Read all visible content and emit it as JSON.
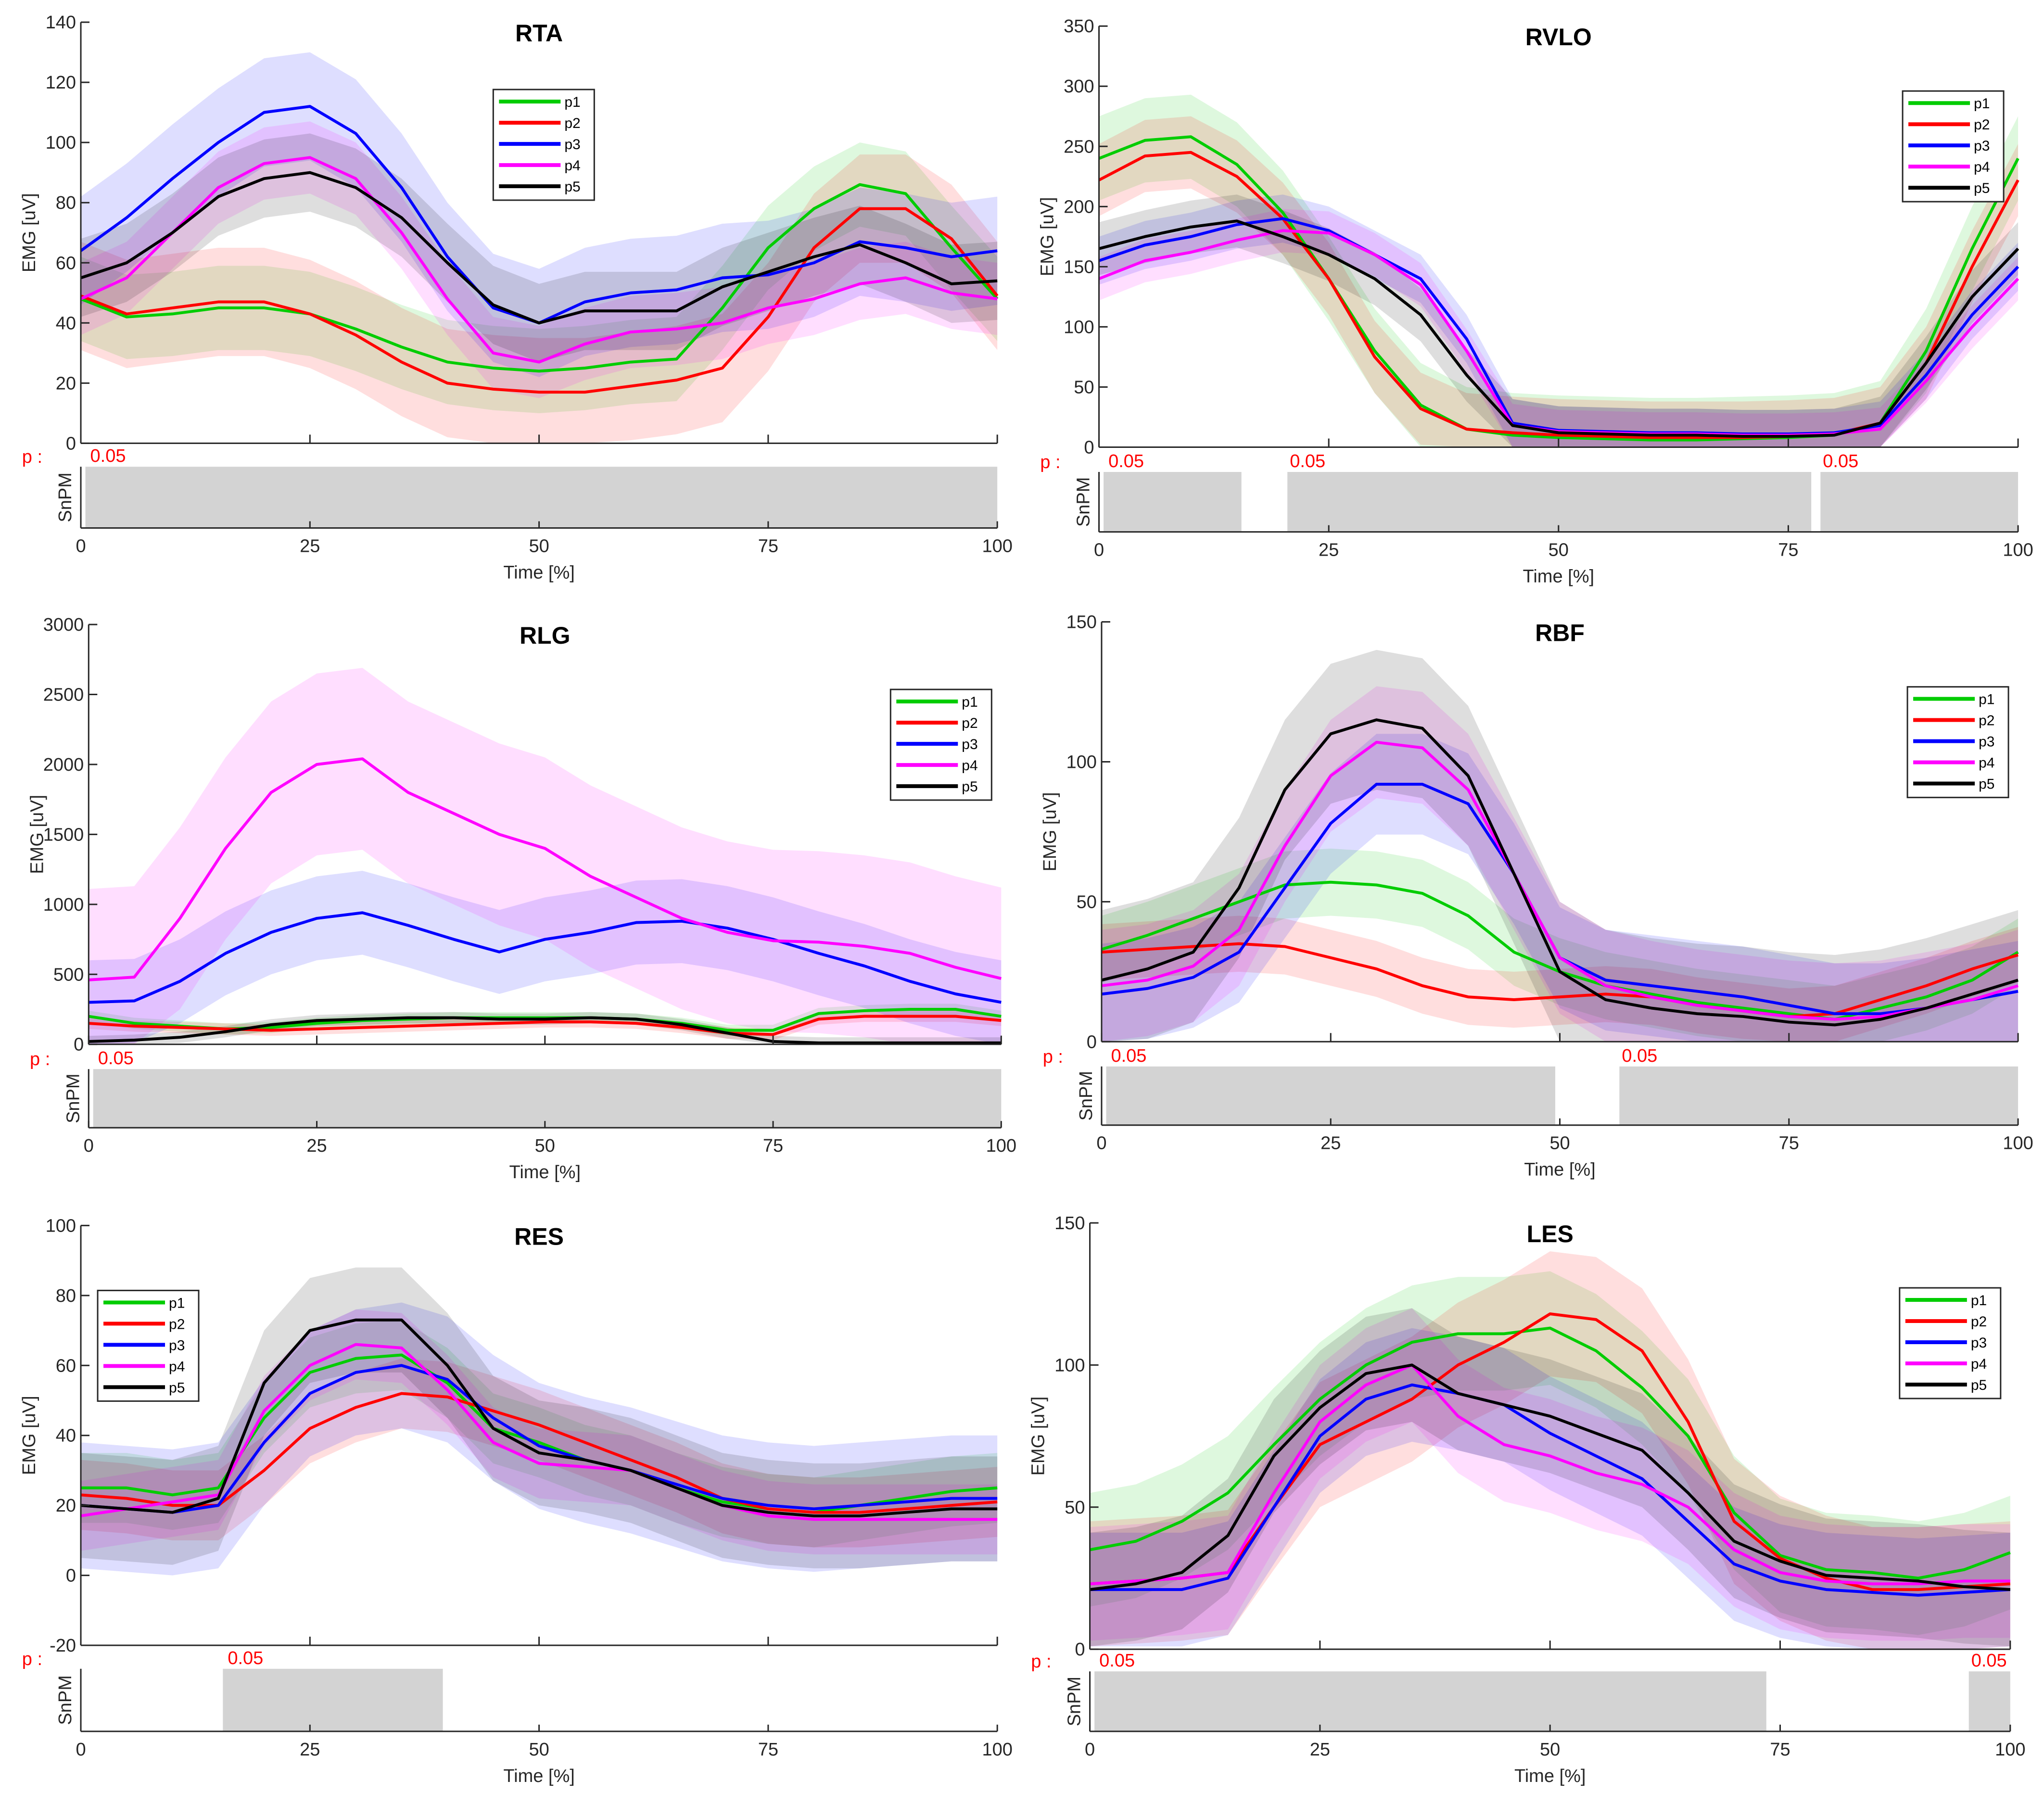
{
  "chart_data": [
    {
      "type": "line",
      "title": "RTA",
      "ylabel": "EMG [uV]",
      "xlabel": "Time [%]",
      "spm_label": "SnPM",
      "p_label": "p :",
      "ylim": [
        0,
        140
      ],
      "yticks": [
        0,
        20,
        40,
        60,
        80,
        100,
        120,
        140
      ],
      "xticks": [
        0,
        25,
        50,
        75,
        100
      ],
      "legend_position": "top-center",
      "x": [
        0,
        5,
        10,
        15,
        20,
        25,
        30,
        35,
        40,
        45,
        50,
        55,
        60,
        65,
        70,
        75,
        80,
        85,
        90,
        95,
        100
      ],
      "series": [
        {
          "name": "p1",
          "color": "#00cc00",
          "band": 14,
          "values": [
            48,
            42,
            43,
            45,
            45,
            43,
            38,
            32,
            27,
            25,
            24,
            25,
            27,
            28,
            45,
            65,
            78,
            86,
            83,
            65,
            48
          ]
        },
        {
          "name": "p2",
          "color": "#ff0000",
          "band": 18,
          "values": [
            49,
            43,
            45,
            47,
            47,
            43,
            36,
            27,
            20,
            18,
            17,
            17,
            19,
            21,
            25,
            42,
            65,
            78,
            78,
            68,
            49
          ]
        },
        {
          "name": "p3",
          "color": "#0000ff",
          "band": 18,
          "values": [
            64,
            75,
            88,
            100,
            110,
            112,
            103,
            85,
            62,
            45,
            40,
            47,
            50,
            51,
            55,
            56,
            60,
            67,
            65,
            62,
            64
          ]
        },
        {
          "name": "p4",
          "color": "#ff00ff",
          "band": 12,
          "values": [
            48,
            55,
            70,
            85,
            93,
            95,
            88,
            70,
            48,
            30,
            27,
            33,
            37,
            38,
            40,
            45,
            48,
            53,
            55,
            50,
            48
          ]
        },
        {
          "name": "p5",
          "color": "#000000",
          "band": 13,
          "values": [
            55,
            60,
            70,
            82,
            88,
            90,
            85,
            75,
            60,
            46,
            40,
            44,
            44,
            44,
            52,
            57,
            62,
            66,
            60,
            53,
            54
          ]
        }
      ],
      "spm_clusters": [
        [
          0.5,
          100
        ]
      ],
      "spm_p_values": [
        "0.05"
      ]
    },
    {
      "type": "line",
      "title": "RVLO",
      "ylabel": "EMG [uV]",
      "xlabel": "Time [%]",
      "spm_label": "SnPM",
      "p_label": "p :",
      "ylim": [
        0,
        350
      ],
      "yticks": [
        0,
        50,
        100,
        150,
        200,
        250,
        300,
        350
      ],
      "xticks": [
        0,
        25,
        50,
        75,
        100
      ],
      "legend_position": "top-right",
      "x": [
        0,
        5,
        10,
        15,
        20,
        25,
        30,
        35,
        40,
        45,
        50,
        55,
        60,
        65,
        70,
        75,
        80,
        85,
        90,
        95,
        100
      ],
      "series": [
        {
          "name": "p1",
          "color": "#00cc00",
          "band": 35,
          "values": [
            240,
            255,
            258,
            235,
            195,
            140,
            80,
            35,
            15,
            10,
            8,
            7,
            6,
            6,
            7,
            8,
            10,
            20,
            80,
            165,
            240
          ]
        },
        {
          "name": "p2",
          "color": "#ff0000",
          "band": 30,
          "values": [
            222,
            242,
            245,
            225,
            190,
            140,
            75,
            32,
            15,
            12,
            10,
            9,
            8,
            8,
            8,
            9,
            11,
            20,
            70,
            150,
            222
          ]
        },
        {
          "name": "p3",
          "color": "#0000ff",
          "band": 20,
          "values": [
            155,
            168,
            175,
            185,
            190,
            180,
            160,
            140,
            90,
            20,
            14,
            13,
            12,
            12,
            11,
            11,
            12,
            18,
            60,
            110,
            150
          ]
        },
        {
          "name": "p4",
          "color": "#ff00ff",
          "band": 18,
          "values": [
            140,
            155,
            162,
            172,
            180,
            178,
            160,
            135,
            80,
            18,
            13,
            12,
            11,
            11,
            10,
            10,
            11,
            15,
            55,
            100,
            140
          ]
        },
        {
          "name": "p5",
          "color": "#000000",
          "band": 22,
          "values": [
            165,
            175,
            183,
            188,
            175,
            160,
            140,
            110,
            60,
            18,
            12,
            11,
            10,
            10,
            9,
            9,
            10,
            20,
            70,
            125,
            165
          ]
        }
      ],
      "spm_clusters": [
        [
          0.5,
          15.5
        ],
        [
          20.5,
          77.5
        ],
        [
          78.5,
          100
        ]
      ],
      "spm_p_values": [
        "0.05",
        "0.05",
        "0.05"
      ]
    },
    {
      "type": "line",
      "title": "RLG",
      "ylabel": "EMG [uV]",
      "xlabel": "Time [%]",
      "spm_label": "SnPM",
      "p_label": "p :",
      "ylim": [
        0,
        3000
      ],
      "yticks": [
        0,
        500,
        1000,
        1500,
        2000,
        2500,
        3000
      ],
      "xticks": [
        0,
        25,
        50,
        75,
        100
      ],
      "legend_position": "right",
      "x": [
        0,
        5,
        10,
        15,
        20,
        25,
        30,
        35,
        40,
        45,
        50,
        55,
        60,
        65,
        70,
        75,
        80,
        85,
        90,
        95,
        100
      ],
      "series": [
        {
          "name": "p1",
          "color": "#00cc00",
          "band": 40,
          "values": [
            200,
            150,
            130,
            110,
            120,
            150,
            170,
            180,
            190,
            190,
            190,
            190,
            180,
            150,
            100,
            100,
            220,
            240,
            250,
            250,
            200
          ]
        },
        {
          "name": "p2",
          "color": "#ff0000",
          "band": 40,
          "values": [
            150,
            130,
            120,
            110,
            100,
            110,
            120,
            130,
            140,
            150,
            160,
            160,
            150,
            120,
            80,
            70,
            180,
            200,
            200,
            200,
            170
          ]
        },
        {
          "name": "p3",
          "color": "#0000ff",
          "band": 300,
          "values": [
            300,
            310,
            450,
            650,
            800,
            900,
            940,
            850,
            750,
            660,
            750,
            800,
            870,
            880,
            830,
            750,
            650,
            560,
            450,
            360,
            300
          ]
        },
        {
          "name": "p4",
          "color": "#ff00ff",
          "band": 650,
          "values": [
            460,
            480,
            900,
            1400,
            1800,
            2000,
            2040,
            1800,
            1650,
            1500,
            1400,
            1200,
            1050,
            900,
            800,
            740,
            730,
            700,
            650,
            550,
            470
          ]
        },
        {
          "name": "p5",
          "color": "#000000",
          "band": 40,
          "values": [
            20,
            30,
            50,
            90,
            140,
            170,
            180,
            190,
            190,
            180,
            180,
            190,
            180,
            140,
            80,
            20,
            10,
            10,
            10,
            10,
            10
          ]
        }
      ],
      "spm_clusters": [
        [
          0.5,
          100
        ]
      ],
      "spm_p_values": [
        "0.05"
      ]
    },
    {
      "type": "line",
      "title": "RBF",
      "ylabel": "EMG [uV]",
      "xlabel": "Time [%]",
      "spm_label": "SnPM",
      "p_label": "p :",
      "ylim": [
        0,
        150
      ],
      "yticks": [
        0,
        50,
        100,
        150
      ],
      "xticks": [
        0,
        25,
        50,
        75,
        100
      ],
      "legend_position": "right",
      "x": [
        0,
        5,
        10,
        15,
        20,
        25,
        30,
        35,
        40,
        45,
        50,
        55,
        60,
        65,
        70,
        75,
        80,
        85,
        90,
        95,
        100
      ],
      "series": [
        {
          "name": "p1",
          "color": "#00cc00",
          "band": 12,
          "values": [
            33,
            38,
            44,
            50,
            56,
            57,
            56,
            53,
            45,
            32,
            25,
            20,
            17,
            14,
            12,
            10,
            8,
            12,
            16,
            22,
            32
          ]
        },
        {
          "name": "p2",
          "color": "#ff0000",
          "band": 10,
          "values": [
            32,
            33,
            34,
            35,
            34,
            30,
            26,
            20,
            16,
            15,
            16,
            17,
            16,
            13,
            11,
            9,
            10,
            15,
            20,
            26,
            31
          ]
        },
        {
          "name": "p3",
          "color": "#0000ff",
          "band": 18,
          "values": [
            17,
            19,
            23,
            32,
            55,
            78,
            92,
            92,
            85,
            60,
            30,
            22,
            20,
            18,
            16,
            13,
            10,
            10,
            12,
            15,
            18
          ]
        },
        {
          "name": "p4",
          "color": "#ff00ff",
          "band": 20,
          "values": [
            20,
            22,
            27,
            40,
            70,
            95,
            107,
            105,
            90,
            60,
            30,
            20,
            16,
            13,
            11,
            9,
            8,
            9,
            12,
            15,
            20
          ]
        },
        {
          "name": "p5",
          "color": "#000000",
          "band": 25,
          "values": [
            22,
            26,
            32,
            55,
            90,
            110,
            115,
            112,
            95,
            60,
            25,
            15,
            12,
            10,
            9,
            7,
            6,
            8,
            12,
            17,
            22
          ]
        }
      ],
      "spm_clusters": [
        [
          0.5,
          49.5
        ],
        [
          56.5,
          100
        ]
      ],
      "spm_p_values": [
        "0.05",
        "0.05"
      ]
    },
    {
      "type": "line",
      "title": "RES",
      "ylabel": "EMG [uV]",
      "xlabel": "Time [%]",
      "spm_label": "SnPM",
      "p_label": "p :",
      "ylim": [
        -20,
        100
      ],
      "yticks": [
        -20,
        0,
        20,
        40,
        60,
        80,
        100
      ],
      "xticks": [
        0,
        25,
        50,
        75,
        100
      ],
      "legend_position": "top-left",
      "x": [
        0,
        5,
        10,
        15,
        20,
        25,
        30,
        35,
        40,
        45,
        50,
        55,
        60,
        65,
        70,
        75,
        80,
        85,
        90,
        95,
        100
      ],
      "series": [
        {
          "name": "p1",
          "color": "#00cc00",
          "band": 10,
          "values": [
            25,
            25,
            23,
            25,
            45,
            58,
            62,
            63,
            55,
            42,
            38,
            33,
            30,
            25,
            21,
            19,
            18,
            20,
            22,
            24,
            25
          ]
        },
        {
          "name": "p2",
          "color": "#ff0000",
          "band": 10,
          "values": [
            23,
            22,
            20,
            20,
            30,
            42,
            48,
            52,
            51,
            47,
            43,
            38,
            33,
            28,
            22,
            19,
            18,
            18,
            19,
            20,
            21
          ]
        },
        {
          "name": "p3",
          "color": "#0000ff",
          "band": 18,
          "values": [
            20,
            19,
            18,
            20,
            38,
            52,
            58,
            60,
            56,
            45,
            37,
            33,
            30,
            26,
            22,
            20,
            19,
            20,
            21,
            22,
            22
          ]
        },
        {
          "name": "p4",
          "color": "#ff00ff",
          "band": 10,
          "values": [
            17,
            19,
            21,
            23,
            47,
            60,
            66,
            65,
            53,
            38,
            32,
            31,
            30,
            25,
            20,
            17,
            16,
            16,
            16,
            16,
            16
          ]
        },
        {
          "name": "p5",
          "color": "#000000",
          "band": 15,
          "values": [
            20,
            19,
            18,
            22,
            55,
            70,
            73,
            73,
            60,
            42,
            35,
            33,
            30,
            25,
            20,
            18,
            17,
            17,
            18,
            19,
            19
          ]
        }
      ],
      "spm_clusters": [
        [
          15.5,
          39.5
        ]
      ],
      "spm_p_values": [
        "0.05"
      ]
    },
    {
      "type": "line",
      "title": "LES",
      "ylabel": "EMG [uV]",
      "xlabel": "Time [%]",
      "spm_label": "SnPM",
      "p_label": "p :",
      "ylim": [
        0,
        150
      ],
      "yticks": [
        0,
        50,
        100,
        150
      ],
      "xticks": [
        0,
        25,
        50,
        75,
        100
      ],
      "legend_position": "right",
      "x": [
        0,
        5,
        10,
        15,
        20,
        25,
        30,
        35,
        40,
        45,
        50,
        55,
        60,
        65,
        70,
        75,
        80,
        85,
        90,
        95,
        100
      ],
      "series": [
        {
          "name": "p1",
          "color": "#00cc00",
          "band": 20,
          "values": [
            35,
            38,
            45,
            55,
            72,
            88,
            100,
            108,
            111,
            111,
            113,
            105,
            92,
            75,
            48,
            33,
            28,
            27,
            25,
            28,
            34
          ]
        },
        {
          "name": "p2",
          "color": "#ff0000",
          "band": 22,
          "values": [
            23,
            24,
            25,
            27,
            50,
            72,
            80,
            88,
            100,
            108,
            118,
            116,
            105,
            80,
            45,
            32,
            25,
            21,
            21,
            22,
            23
          ]
        },
        {
          "name": "p3",
          "color": "#0000ff",
          "band": 20,
          "values": [
            21,
            21,
            21,
            25,
            50,
            75,
            88,
            93,
            90,
            86,
            76,
            68,
            60,
            45,
            30,
            24,
            21,
            20,
            19,
            20,
            21
          ]
        },
        {
          "name": "p4",
          "color": "#ff00ff",
          "band": 20,
          "values": [
            23,
            24,
            25,
            27,
            55,
            80,
            93,
            100,
            82,
            72,
            68,
            62,
            58,
            50,
            35,
            27,
            24,
            23,
            23,
            24,
            24
          ]
        },
        {
          "name": "p5",
          "color": "#000000",
          "band": 20,
          "values": [
            21,
            23,
            27,
            40,
            68,
            85,
            97,
            100,
            90,
            86,
            82,
            76,
            70,
            55,
            38,
            31,
            26,
            25,
            24,
            22,
            21
          ]
        }
      ],
      "spm_clusters": [
        [
          0.5,
          73.5
        ],
        [
          95.5,
          100
        ]
      ],
      "spm_p_values": [
        "0.05",
        "0.05"
      ]
    }
  ]
}
